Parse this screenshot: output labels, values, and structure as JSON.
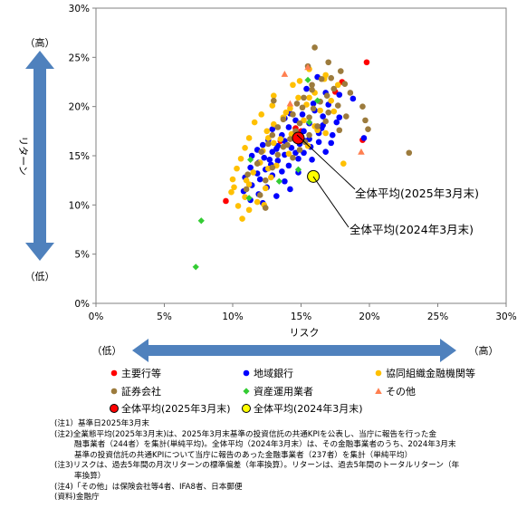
{
  "chart_data": {
    "type": "scatter",
    "xlabel": "リスク",
    "ylabel": "リターン",
    "xlim": [
      0,
      30
    ],
    "ylim": [
      0,
      30
    ],
    "x_ticks": [
      "0%",
      "5%",
      "10%",
      "15%",
      "20%",
      "25%",
      "30%"
    ],
    "y_ticks": [
      "0%",
      "5%",
      "10%",
      "15%",
      "20%",
      "25%",
      "30%"
    ],
    "grid": false,
    "x_arrow_low": "（低）",
    "x_arrow_high": "（高）",
    "y_arrow_high": "（高）",
    "y_arrow_low": "（低）",
    "callout_2025": "全体平均(2025年3月末)",
    "callout_2024": "全体平均(2024年3月末)",
    "series": [
      {
        "name": "主要行等",
        "color": "#ff0000",
        "marker": "circle",
        "points": [
          [
            19.8,
            24.5
          ],
          [
            18.0,
            22.5
          ],
          [
            17.5,
            21.5
          ],
          [
            19.5,
            16.6
          ],
          [
            15.0,
            17.5
          ],
          [
            14.6,
            17.8
          ],
          [
            13.5,
            16.5
          ],
          [
            9.5,
            10.4
          ]
        ]
      },
      {
        "name": "地域銀行",
        "color": "#0000ff",
        "marker": "circle",
        "points": [
          [
            16.2,
            23.0
          ],
          [
            15.4,
            21.8
          ],
          [
            16.8,
            21.4
          ],
          [
            17.8,
            21.2
          ],
          [
            18.8,
            20.8
          ],
          [
            17.0,
            20.2
          ],
          [
            16.0,
            19.6
          ],
          [
            15.1,
            19.2
          ],
          [
            16.6,
            19.0
          ],
          [
            17.8,
            18.9
          ],
          [
            13.8,
            18.8
          ],
          [
            14.6,
            18.6
          ],
          [
            15.6,
            18.3
          ],
          [
            16.6,
            18.1
          ],
          [
            14.1,
            17.9
          ],
          [
            12.9,
            17.7
          ],
          [
            15.2,
            17.5
          ],
          [
            16.3,
            17.3
          ],
          [
            17.3,
            17.1
          ],
          [
            13.6,
            17.1
          ],
          [
            14.5,
            16.9
          ],
          [
            15.6,
            16.7
          ],
          [
            12.6,
            16.6
          ],
          [
            13.8,
            16.5
          ],
          [
            16.3,
            16.4
          ],
          [
            14.9,
            16.2
          ],
          [
            12.2,
            16.1
          ],
          [
            13.3,
            16.0
          ],
          [
            15.7,
            15.9
          ],
          [
            14.3,
            15.8
          ],
          [
            11.8,
            15.6
          ],
          [
            12.9,
            15.4
          ],
          [
            15.2,
            15.3
          ],
          [
            13.8,
            15.1
          ],
          [
            11.4,
            15.0
          ],
          [
            12.3,
            14.8
          ],
          [
            14.8,
            14.7
          ],
          [
            13.3,
            14.5
          ],
          [
            11.9,
            14.3
          ],
          [
            12.8,
            14.1
          ],
          [
            14.1,
            14.0
          ],
          [
            11.3,
            13.8
          ],
          [
            12.4,
            13.6
          ],
          [
            13.6,
            13.4
          ],
          [
            11.8,
            13.2
          ],
          [
            12.9,
            13.0
          ],
          [
            10.9,
            12.8
          ],
          [
            12.0,
            12.6
          ],
          [
            13.8,
            12.4
          ],
          [
            11.4,
            12.0
          ],
          [
            12.5,
            11.8
          ],
          [
            14.2,
            11.6
          ],
          [
            10.8,
            11.4
          ],
          [
            11.9,
            11.1
          ],
          [
            13.2,
            10.9
          ],
          [
            11.3,
            10.5
          ],
          [
            12.2,
            10.2
          ],
          [
            14.8,
            13.3
          ],
          [
            15.8,
            14.6
          ],
          [
            16.8,
            15.4
          ],
          [
            17.2,
            16.3
          ],
          [
            16.5,
            17.8
          ],
          [
            17.6,
            18.4
          ],
          [
            15.9,
            20.3
          ],
          [
            19.6,
            16.8
          ],
          [
            14.2,
            19.3
          ],
          [
            13.2,
            15.7
          ],
          [
            14.6,
            15.3
          ],
          [
            12.7,
            14.6
          ],
          [
            15.3,
            16.5
          ]
        ]
      },
      {
        "name": "協同組織金融機関等",
        "color": "#ffc000",
        "marker": "circle",
        "points": [
          [
            15.6,
            23.8
          ],
          [
            16.8,
            23.2
          ],
          [
            14.4,
            22.2
          ],
          [
            17.7,
            22.2
          ],
          [
            16.0,
            21.4
          ],
          [
            13.0,
            21.1
          ],
          [
            14.8,
            20.9
          ],
          [
            17.2,
            20.6
          ],
          [
            15.4,
            20.2
          ],
          [
            12.9,
            20.1
          ],
          [
            14.2,
            19.8
          ],
          [
            16.4,
            19.6
          ],
          [
            12.1,
            19.2
          ],
          [
            13.7,
            18.9
          ],
          [
            15.2,
            18.6
          ],
          [
            11.6,
            18.4
          ],
          [
            13.0,
            18.2
          ],
          [
            16.0,
            18.0
          ],
          [
            12.5,
            17.5
          ],
          [
            14.3,
            17.2
          ],
          [
            11.2,
            16.8
          ],
          [
            13.0,
            16.3
          ],
          [
            15.5,
            16.0
          ],
          [
            10.9,
            15.8
          ],
          [
            12.2,
            15.5
          ],
          [
            14.1,
            15.2
          ],
          [
            10.6,
            14.7
          ],
          [
            12.0,
            14.3
          ],
          [
            13.2,
            14.0
          ],
          [
            10.3,
            13.7
          ],
          [
            11.5,
            13.3
          ],
          [
            12.8,
            12.8
          ],
          [
            10.0,
            12.6
          ],
          [
            11.2,
            12.1
          ],
          [
            12.4,
            11.7
          ],
          [
            9.9,
            11.3
          ],
          [
            10.9,
            10.8
          ],
          [
            11.8,
            10.3
          ],
          [
            10.4,
            9.9
          ],
          [
            11.2,
            9.5
          ],
          [
            10.7,
            8.6
          ],
          [
            17.4,
            19.5
          ],
          [
            16.8,
            17.3
          ],
          [
            14.9,
            22.6
          ],
          [
            13.5,
            16.7
          ],
          [
            10.1,
            11.8
          ],
          [
            11.0,
            12.5
          ],
          [
            12.6,
            13.7
          ],
          [
            15.6,
            20.9
          ],
          [
            16.7,
            22.8
          ],
          [
            16.2,
            17.6
          ],
          [
            13.9,
            19.4
          ],
          [
            12.3,
            10.0
          ],
          [
            18.1,
            14.2
          ],
          [
            12.6,
            16.8
          ]
        ]
      },
      {
        "name": "証券会社",
        "color": "#9c7b3d",
        "marker": "circle",
        "points": [
          [
            16.0,
            26.0
          ],
          [
            17.0,
            24.5
          ],
          [
            15.5,
            24.1
          ],
          [
            17.9,
            23.6
          ],
          [
            16.5,
            22.8
          ],
          [
            18.2,
            22.3
          ],
          [
            17.4,
            21.8
          ],
          [
            15.8,
            21.7
          ],
          [
            16.9,
            21.1
          ],
          [
            18.6,
            21.4
          ],
          [
            15.2,
            20.9
          ],
          [
            16.4,
            20.5
          ],
          [
            17.7,
            20.1
          ],
          [
            14.7,
            20.3
          ],
          [
            15.9,
            19.8
          ],
          [
            17.0,
            19.4
          ],
          [
            14.4,
            19.2
          ],
          [
            15.6,
            18.9
          ],
          [
            16.8,
            18.5
          ],
          [
            13.7,
            18.7
          ],
          [
            14.9,
            18.3
          ],
          [
            16.2,
            18.0
          ],
          [
            17.8,
            17.6
          ],
          [
            13.3,
            17.9
          ],
          [
            14.6,
            17.5
          ],
          [
            15.6,
            17.1
          ],
          [
            12.9,
            17.1
          ],
          [
            14.2,
            16.7
          ],
          [
            15.3,
            16.4
          ],
          [
            12.6,
            16.2
          ],
          [
            13.7,
            15.9
          ],
          [
            14.9,
            15.6
          ],
          [
            12.1,
            15.4
          ],
          [
            13.3,
            15.1
          ],
          [
            14.4,
            14.8
          ],
          [
            11.8,
            14.2
          ],
          [
            12.9,
            13.8
          ],
          [
            11.1,
            13.1
          ],
          [
            12.4,
            12.5
          ],
          [
            11.0,
            11.6
          ],
          [
            12.0,
            11.0
          ],
          [
            19.7,
            18.6
          ],
          [
            19.9,
            17.7
          ],
          [
            19.5,
            20.0
          ],
          [
            18.3,
            19.0
          ],
          [
            22.9,
            15.3
          ],
          [
            12.4,
            9.7
          ],
          [
            15.8,
            22.2
          ],
          [
            13.0,
            20.6
          ],
          [
            17.2,
            22.9
          ],
          [
            14.0,
            16.1
          ],
          [
            15.1,
            19.9
          ]
        ]
      },
      {
        "name": "資産運用業者",
        "color": "#33cc33",
        "marker": "diamond",
        "points": [
          [
            7.3,
            3.7
          ],
          [
            7.7,
            8.4
          ],
          [
            13.4,
            12.4
          ],
          [
            14.8,
            13.6
          ],
          [
            11.3,
            14.6
          ],
          [
            11.2,
            10.7
          ],
          [
            15.6,
            18.4
          ],
          [
            15.5,
            22.7
          ],
          [
            16.2,
            20.6
          ]
        ]
      },
      {
        "name": "その他",
        "color": "#ff7f50",
        "marker": "triangle",
        "points": [
          [
            15.5,
            24.0
          ],
          [
            14.2,
            20.3
          ],
          [
            13.8,
            23.3
          ],
          [
            19.4,
            15.4
          ]
        ]
      },
      {
        "name": "全体平均(2025年3月末)",
        "color": "#ff0000",
        "marker": "big-circle",
        "stroke": "#000000",
        "points": [
          [
            14.8,
            16.8
          ]
        ]
      },
      {
        "name": "全体平均(2024年3月末)",
        "color": "#ffff00",
        "marker": "big-circle",
        "stroke": "#000000",
        "points": [
          [
            15.9,
            12.9
          ]
        ]
      }
    ]
  },
  "notes": [
    {
      "text": "(注1）基準日2025年3月末",
      "indent": false
    },
    {
      "text": "(注2)全業態平均(2025年3月末)は、2025年3月末基準の投資信託の共通KPIを公表し、当庁に報告を行った金",
      "indent": false
    },
    {
      "text": "融事業者（244者）を集計(単純平均)。全体平均（2024年3月末）は、その金融事業者のうち、2024年3月末",
      "indent": true
    },
    {
      "text": "基準の投資信託の共通KPIについて当庁に報告のあった金融事業者（237者）を集計（単純平均）",
      "indent": true
    },
    {
      "text": "(注3)リスクは、過去5年間の月次リターンの標準偏差（年率換算）。リターンは、過去5年間のトータルリターン（年",
      "indent": false
    },
    {
      "text": "率換算）",
      "indent": true
    },
    {
      "text": "(注4)「その他」は保険会社等4者、IFA8者、日本郵便",
      "indent": false
    },
    {
      "text": "(資料)金融庁",
      "indent": false
    }
  ]
}
